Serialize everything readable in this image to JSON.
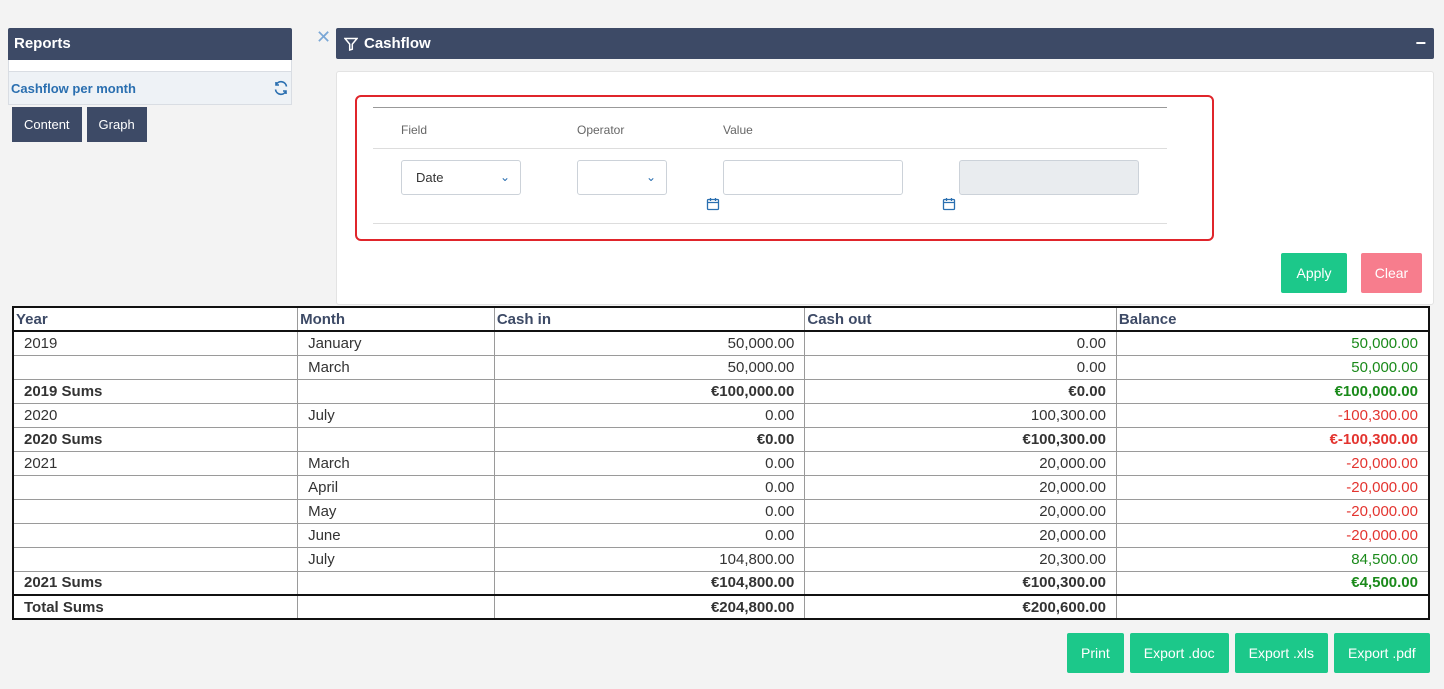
{
  "reports": {
    "title": "Reports",
    "item_label": "Cashflow per month",
    "tabs": [
      "Content",
      "Graph"
    ]
  },
  "panel": {
    "close": "✕",
    "title": "Cashflow",
    "collapse": "−"
  },
  "filter": {
    "col_field": "Field",
    "col_operator": "Operator",
    "col_value": "Value",
    "field_value": "Date",
    "operator_value": "",
    "value1": "",
    "value2": ""
  },
  "actions": {
    "apply": "Apply",
    "clear": "Clear"
  },
  "table": {
    "headers": [
      "Year",
      "Month",
      "Cash in",
      "Cash out",
      "Balance"
    ],
    "rows": [
      {
        "year": "2019",
        "month": "January",
        "cash_in": "50,000.00",
        "cash_out": "0.00",
        "balance": "50,000.00",
        "sign": "pos",
        "kind": "row"
      },
      {
        "year": "",
        "month": "March",
        "cash_in": "50,000.00",
        "cash_out": "0.00",
        "balance": "50,000.00",
        "sign": "pos",
        "kind": "row"
      },
      {
        "year": "2019 Sums",
        "month": "",
        "cash_in": "€100,000.00",
        "cash_out": "€0.00",
        "balance": "€100,000.00",
        "sign": "pos",
        "kind": "sum"
      },
      {
        "year": "2020",
        "month": "July",
        "cash_in": "0.00",
        "cash_out": "100,300.00",
        "balance": "-100,300.00",
        "sign": "neg",
        "kind": "row"
      },
      {
        "year": "2020 Sums",
        "month": "",
        "cash_in": "€0.00",
        "cash_out": "€100,300.00",
        "balance": "€-100,300.00",
        "sign": "neg",
        "kind": "sum"
      },
      {
        "year": "2021",
        "month": "March",
        "cash_in": "0.00",
        "cash_out": "20,000.00",
        "balance": "-20,000.00",
        "sign": "neg",
        "kind": "row"
      },
      {
        "year": "",
        "month": "April",
        "cash_in": "0.00",
        "cash_out": "20,000.00",
        "balance": "-20,000.00",
        "sign": "neg",
        "kind": "row"
      },
      {
        "year": "",
        "month": "May",
        "cash_in": "0.00",
        "cash_out": "20,000.00",
        "balance": "-20,000.00",
        "sign": "neg",
        "kind": "row"
      },
      {
        "year": "",
        "month": "June",
        "cash_in": "0.00",
        "cash_out": "20,000.00",
        "balance": "-20,000.00",
        "sign": "neg",
        "kind": "row"
      },
      {
        "year": "",
        "month": "July",
        "cash_in": "104,800.00",
        "cash_out": "20,300.00",
        "balance": "84,500.00",
        "sign": "pos",
        "kind": "row"
      },
      {
        "year": "2021 Sums",
        "month": "",
        "cash_in": "€104,800.00",
        "cash_out": "€100,300.00",
        "balance": "€4,500.00",
        "sign": "pos",
        "kind": "sum"
      },
      {
        "year": "Total Sums",
        "month": "",
        "cash_in": "€204,800.00",
        "cash_out": "€200,600.00",
        "balance": "",
        "sign": "pos",
        "kind": "total"
      }
    ]
  },
  "exports": [
    "Print",
    "Export .doc",
    "Export .xls",
    "Export .pdf"
  ],
  "colors": {
    "header_bg": "#3d4a66",
    "accent_green": "#1cc88a",
    "clear_pink": "#f77d8d",
    "positive": "#1a8a1a",
    "negative": "#e3342f"
  }
}
